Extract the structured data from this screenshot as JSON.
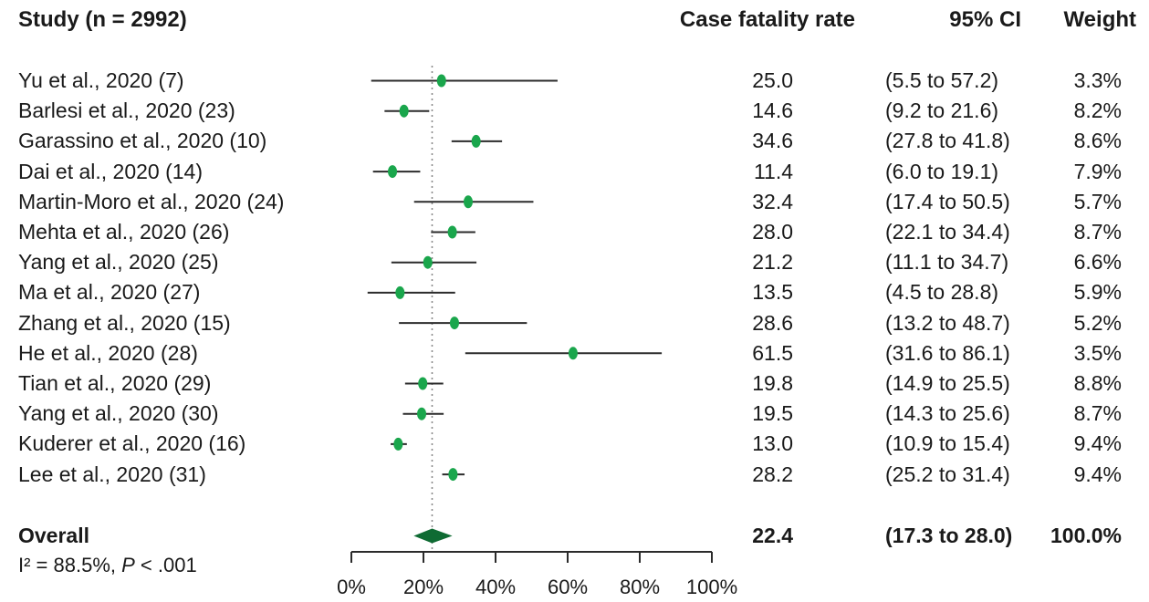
{
  "headers": {
    "study": "Study (n = 2992)",
    "rate": "Case fatality rate",
    "ci": "95% CI",
    "weight": "Weight"
  },
  "chart_data": {
    "type": "forest",
    "xlim": [
      0,
      100
    ],
    "x_ticks": [
      0,
      20,
      40,
      60,
      80,
      100
    ],
    "x_tick_labels": [
      "0%",
      "20%",
      "40%",
      "60%",
      "80%",
      "100%"
    ],
    "reference_line": 22.4,
    "marker_color": "#1aa64c",
    "diamond_color": "#0f6b33",
    "studies": [
      {
        "label": "Yu et al., 2020 (7)",
        "rate": 25.0,
        "rate_text": "25.0",
        "lo": 5.5,
        "hi": 57.2,
        "ci_text": "(5.5 to 57.2)",
        "weight": "3.3%"
      },
      {
        "label": "Barlesi et al., 2020 (23)",
        "rate": 14.6,
        "rate_text": "14.6",
        "lo": 9.2,
        "hi": 21.6,
        "ci_text": "(9.2 to 21.6)",
        "weight": "8.2%"
      },
      {
        "label": "Garassino et al., 2020 (10)",
        "rate": 34.6,
        "rate_text": "34.6",
        "lo": 27.8,
        "hi": 41.8,
        "ci_text": "(27.8 to 41.8)",
        "weight": "8.6%"
      },
      {
        "label": "Dai et al., 2020 (14)",
        "rate": 11.4,
        "rate_text": "11.4",
        "lo": 6.0,
        "hi": 19.1,
        "ci_text": "(6.0 to 19.1)",
        "weight": "7.9%"
      },
      {
        "label": "Martin-Moro et al., 2020 (24)",
        "rate": 32.4,
        "rate_text": "32.4",
        "lo": 17.4,
        "hi": 50.5,
        "ci_text": "(17.4 to 50.5)",
        "weight": "5.7%"
      },
      {
        "label": "Mehta et al., 2020 (26)",
        "rate": 28.0,
        "rate_text": "28.0",
        "lo": 22.1,
        "hi": 34.4,
        "ci_text": "(22.1 to 34.4)",
        "weight": "8.7%"
      },
      {
        "label": "Yang et al., 2020 (25)",
        "rate": 21.2,
        "rate_text": "21.2",
        "lo": 11.1,
        "hi": 34.7,
        "ci_text": "(11.1 to 34.7)",
        "weight": "6.6%"
      },
      {
        "label": "Ma et al., 2020 (27)",
        "rate": 13.5,
        "rate_text": "13.5",
        "lo": 4.5,
        "hi": 28.8,
        "ci_text": "(4.5 to 28.8)",
        "weight": "5.9%"
      },
      {
        "label": "Zhang et al., 2020 (15)",
        "rate": 28.6,
        "rate_text": "28.6",
        "lo": 13.2,
        "hi": 48.7,
        "ci_text": "(13.2 to 48.7)",
        "weight": "5.2%"
      },
      {
        "label": "He et al., 2020 (28)",
        "rate": 61.5,
        "rate_text": "61.5",
        "lo": 31.6,
        "hi": 86.1,
        "ci_text": "(31.6 to 86.1)",
        "weight": "3.5%"
      },
      {
        "label": "Tian et al., 2020 (29)",
        "rate": 19.8,
        "rate_text": "19.8",
        "lo": 14.9,
        "hi": 25.5,
        "ci_text": "(14.9 to 25.5)",
        "weight": "8.8%"
      },
      {
        "label": "Yang et al., 2020 (30)",
        "rate": 19.5,
        "rate_text": "19.5",
        "lo": 14.3,
        "hi": 25.6,
        "ci_text": "(14.3 to 25.6)",
        "weight": "8.7%"
      },
      {
        "label": "Kuderer et al., 2020 (16)",
        "rate": 13.0,
        "rate_text": "13.0",
        "lo": 10.9,
        "hi": 15.4,
        "ci_text": "(10.9 to 15.4)",
        "weight": "9.4%"
      },
      {
        "label": "Lee et al., 2020 (31)",
        "rate": 28.2,
        "rate_text": "28.2",
        "lo": 25.2,
        "hi": 31.4,
        "ci_text": "(25.2 to 31.4)",
        "weight": "9.4%"
      }
    ],
    "overall": {
      "label": "Overall",
      "rate": 22.4,
      "rate_text": "22.4",
      "lo": 17.3,
      "hi": 28.0,
      "ci_text": "(17.3 to 28.0)",
      "weight": "100.0%"
    }
  },
  "heterogeneity": {
    "i_squared": "I² = 88.5%, ",
    "p_letter": "P",
    "p_value": " < .001"
  }
}
